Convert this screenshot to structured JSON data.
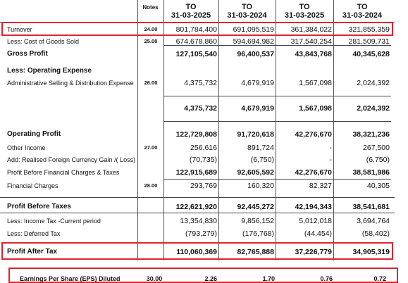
{
  "header": {
    "top_cut": [
      "",
      "",
      "",
      ""
    ],
    "to_label": "TO",
    "notes_label": "Notes",
    "dates": [
      "31-03-2025",
      "31-03-2024",
      "31-03-2025",
      "31-03-2024"
    ]
  },
  "rows": [
    {
      "label": "Turnover",
      "note": "24.00",
      "v": [
        "801,784,400",
        "691,095,519",
        "361,384,022",
        "321,855,359"
      ]
    },
    {
      "label": "Less: Cost of Goods Sold",
      "note": "25.00",
      "v": [
        "674,678,860",
        "594,694,982",
        "317,540,254",
        "281,509,731"
      ]
    },
    {
      "label": "Gross Profit",
      "note": "",
      "v": [
        "127,105,540",
        "96,400,537",
        "43,843,768",
        "40,345,628"
      ]
    },
    {
      "label": "Less: Operating Expense",
      "note": "",
      "v": [
        "",
        "",
        "",
        ""
      ]
    },
    {
      "label": "Administrative Selling & Distribution Expense",
      "note": "26.00",
      "v": [
        "4,375,732",
        "4,679,919",
        "1,567,098",
        "2,024,392"
      ]
    },
    {
      "label": "",
      "note": "",
      "v": [
        "4,375,732",
        "4,679,919",
        "1,567,098",
        "2,024,392"
      ]
    },
    {
      "label": "Operating Profit",
      "note": "",
      "v": [
        "122,729,808",
        "91,720,618",
        "42,276,670",
        "38,321,236"
      ]
    },
    {
      "label": "Other Income",
      "note": "27.00",
      "v": [
        "256,616",
        "891,724",
        "-",
        "267,500"
      ]
    },
    {
      "label": "Add: Realised Foreign Currency Gain /( Loss)",
      "note": "",
      "v": [
        "(70,735)",
        "(6,750)",
        "-",
        "(6,750)"
      ]
    },
    {
      "label": "Profit Before Financial Charges & Taxes",
      "note": "",
      "v": [
        "122,915,689",
        "92,605,592",
        "42,276,670",
        "38,581,986"
      ]
    },
    {
      "label": "Financial Charges",
      "note": "28.00",
      "v": [
        "293,769",
        "160,320",
        "82,327",
        "40,305"
      ]
    },
    {
      "label": "Profit Before Taxes",
      "note": "",
      "v": [
        "122,621,920",
        "92,445,272",
        "42,194,343",
        "38,541,681"
      ]
    },
    {
      "label": "Less: Income Tax -Current period",
      "note": "",
      "v": [
        "13,354,830",
        "9,856,152",
        "5,012,018",
        "3,694,764"
      ]
    },
    {
      "label": "Less: Deferred Tax",
      "note": "",
      "v": [
        "(793,279)",
        "(176,768)",
        "(44,454)",
        "(58,402)"
      ]
    },
    {
      "label": "Profit After Tax",
      "note": "",
      "v": [
        "110,060,369",
        "82,765,888",
        "37,226,779",
        "34,905,319"
      ]
    }
  ],
  "eps": {
    "label": "Earnings Per Share (EPS) Diluted",
    "note": "30.00",
    "v": [
      "2.26",
      "1.70",
      "0.76",
      "0.72"
    ]
  },
  "colors": {
    "highlight": "#e0232e"
  }
}
